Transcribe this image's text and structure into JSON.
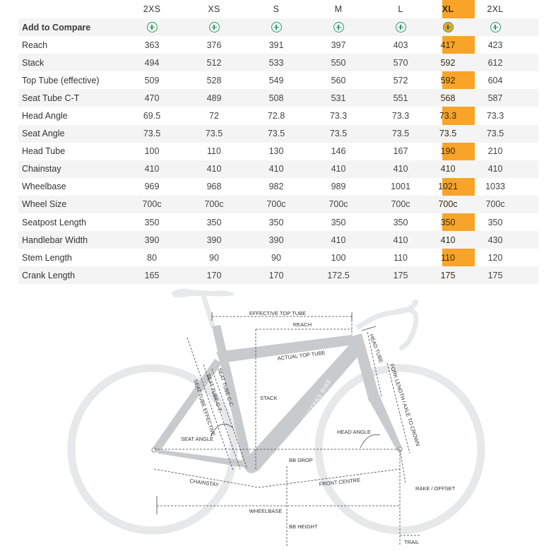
{
  "sizes": [
    "2XS",
    "XS",
    "S",
    "M",
    "L",
    "XL",
    "2XL"
  ],
  "highlighted_size": "XL",
  "compare_label": "Add to Compare",
  "rows": [
    {
      "label": "Reach",
      "values": [
        "363",
        "376",
        "391",
        "397",
        "403",
        "417",
        "423"
      ]
    },
    {
      "label": "Stack",
      "values": [
        "494",
        "512",
        "533",
        "550",
        "570",
        "592",
        "612"
      ]
    },
    {
      "label": "Top Tube (effective)",
      "values": [
        "509",
        "528",
        "549",
        "560",
        "572",
        "592",
        "604"
      ]
    },
    {
      "label": "Seat Tube C-T",
      "values": [
        "470",
        "489",
        "508",
        "531",
        "551",
        "568",
        "587"
      ]
    },
    {
      "label": "Head Angle",
      "values": [
        "69.5",
        "72",
        "72.8",
        "73.3",
        "73.3",
        "73.3",
        "73.3"
      ]
    },
    {
      "label": "Seat Angle",
      "values": [
        "73.5",
        "73.5",
        "73.5",
        "73.5",
        "73.5",
        "73.5",
        "73.5"
      ]
    },
    {
      "label": "Head Tube",
      "values": [
        "100",
        "110",
        "130",
        "146",
        "167",
        "190",
        "210"
      ]
    },
    {
      "label": "Chainstay",
      "values": [
        "410",
        "410",
        "410",
        "410",
        "410",
        "410",
        "410"
      ]
    },
    {
      "label": "Wheelbase",
      "values": [
        "969",
        "968",
        "982",
        "989",
        "1001",
        "1021",
        "1033"
      ]
    },
    {
      "label": "Wheel Size",
      "values": [
        "700c",
        "700c",
        "700c",
        "700c",
        "700c",
        "700c",
        "700c"
      ]
    },
    {
      "label": "Seatpost Length",
      "values": [
        "350",
        "350",
        "350",
        "350",
        "350",
        "350",
        "350"
      ]
    },
    {
      "label": "Handlebar Width",
      "values": [
        "390",
        "390",
        "390",
        "410",
        "410",
        "410",
        "430"
      ]
    },
    {
      "label": "Stem Length",
      "values": [
        "80",
        "90",
        "90",
        "100",
        "110",
        "110",
        "120"
      ]
    },
    {
      "label": "Crank Length",
      "values": [
        "165",
        "170",
        "170",
        "172.5",
        "175",
        "175",
        "175"
      ]
    }
  ],
  "diagram": {
    "effective_top_tube": "EFFECTIVE TOP TUBE",
    "reach": "REACH",
    "actual_top_tube": "ACTUAL TOP TUBE",
    "head_tube": "HEAD TUBE",
    "fork_length": "FORK LENGTH / AXLE TO CROWN",
    "seat_tube_c_c": "SEAT TUBE C-C",
    "seat_tube_c_t": "SEAT TUBE C-T",
    "seat_tube_effective": "SEAT TUBE EFFECTIVE",
    "stack": "STACK",
    "frame_brand": "GEOMETRYGEEKS BIKE",
    "head_angle": "HEAD ANGLE",
    "seat_angle": "SEAT ANGLE",
    "bb_drop": "BB DROP",
    "chainstay": "CHAINSTAY",
    "front_centre": "FRONT CENTRE",
    "rake_offset": "RAKE / OFFSET",
    "wheelbase": "WHEELBASE",
    "bb_height": "BB HEIGHT",
    "trail": "TRAIL"
  },
  "colors": {
    "highlight": "#f7a428",
    "accent_green": "#27a06a",
    "zebra": "#f4f4f4",
    "frame": "#c8cbcd",
    "wheel": "#e8eaeb"
  }
}
